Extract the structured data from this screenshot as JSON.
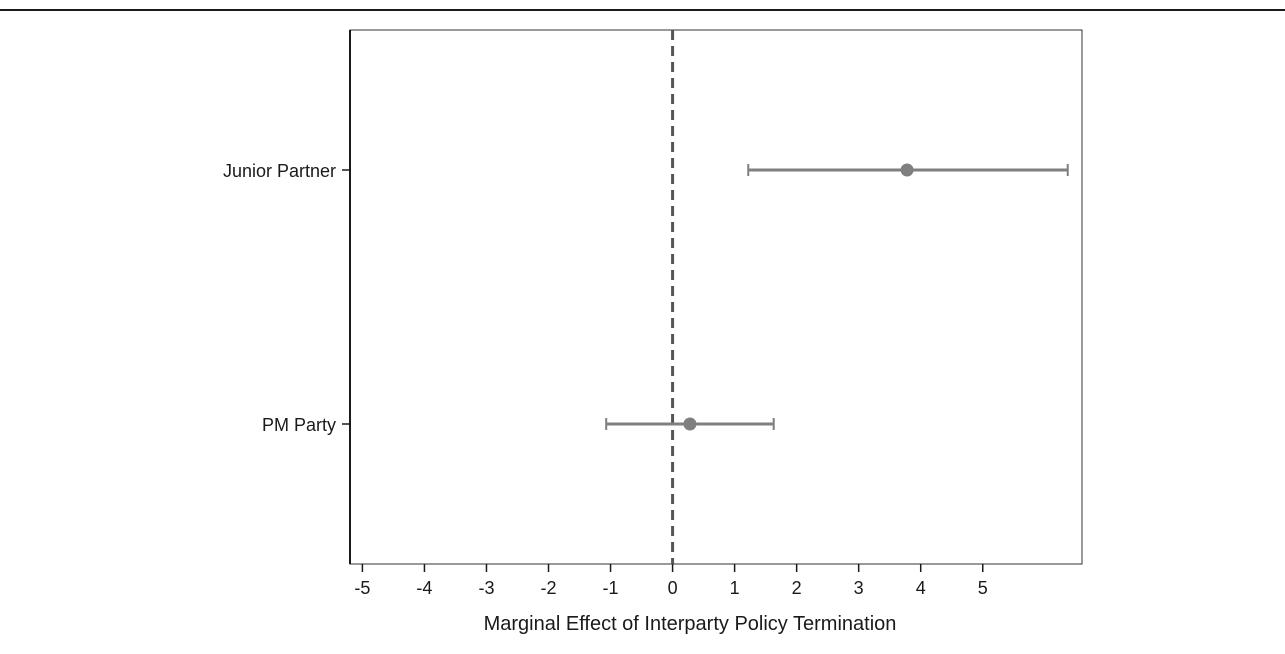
{
  "chart_data": {
    "type": "scatter",
    "subtype": "coefficient-plot",
    "title": "",
    "xlabel": "Marginal Effect of Interparty Policy Termination",
    "ylabel": "",
    "xlim": [
      -5.2,
      6.6
    ],
    "xticks": [
      -5,
      -4,
      -3,
      -2,
      -1,
      0,
      1,
      2,
      3,
      4,
      5
    ],
    "xtick_labels": [
      "-5",
      "-4",
      "-3",
      "-2",
      "-1",
      "0",
      "1",
      "2",
      "3",
      "4",
      "5"
    ],
    "reference_line": {
      "x": 0,
      "style": "dashed"
    },
    "categories": [
      "Junior Partner",
      "PM Party"
    ],
    "estimates": [
      {
        "label": "Junior Partner",
        "value": 3.78,
        "lower": 1.22,
        "upper": 6.37
      },
      {
        "label": "PM Party",
        "value": 0.28,
        "lower": -1.07,
        "upper": 1.63
      }
    ],
    "grid": false,
    "legend": "none",
    "colors": {
      "marker": "#7f7f7f",
      "errorbar": "#7f7f7f",
      "refline": "#555555",
      "axis": "#1a1a1a"
    }
  }
}
